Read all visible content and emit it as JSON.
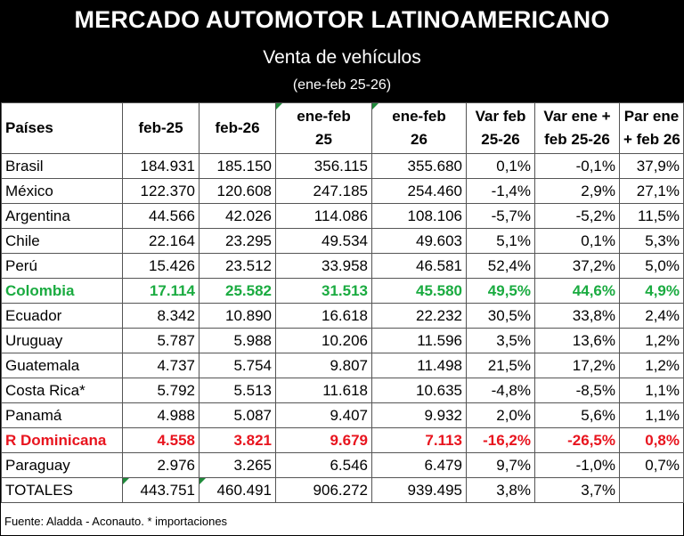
{
  "header": {
    "title": "MERCADO AUTOMOTOR LATINOAMERICANO",
    "subtitle": "Venta de vehículos",
    "period": "(ene-feb 25-26)"
  },
  "columns": [
    {
      "line1": "Países",
      "line2": ""
    },
    {
      "line1": "feb-25",
      "line2": ""
    },
    {
      "line1": "feb-26",
      "line2": ""
    },
    {
      "line1": "ene-feb",
      "line2": "25"
    },
    {
      "line1": "ene-feb",
      "line2": "26"
    },
    {
      "line1": "Var feb",
      "line2": "25-26"
    },
    {
      "line1": "Var ene +",
      "line2": "feb 25-26"
    },
    {
      "line1": "Par ene",
      "line2": "+ feb 26"
    }
  ],
  "rows": [
    {
      "style": "",
      "cells": [
        "Brasil",
        "184.931",
        "185.150",
        "356.115",
        "355.680",
        "0,1%",
        "-0,1%",
        "37,9%"
      ]
    },
    {
      "style": "",
      "cells": [
        "México",
        "122.370",
        "120.608",
        "247.185",
        "254.460",
        "-1,4%",
        "2,9%",
        "27,1%"
      ]
    },
    {
      "style": "",
      "cells": [
        "Argentina",
        "44.566",
        "42.026",
        "114.086",
        "108.106",
        "-5,7%",
        "-5,2%",
        "11,5%"
      ]
    },
    {
      "style": "",
      "cells": [
        "Chile",
        "22.164",
        "23.295",
        "49.534",
        "49.603",
        "5,1%",
        "0,1%",
        "5,3%"
      ]
    },
    {
      "style": "",
      "cells": [
        "Perú",
        "15.426",
        "23.512",
        "33.958",
        "46.581",
        "52,4%",
        "37,2%",
        "5,0%"
      ]
    },
    {
      "style": "green",
      "cells": [
        "Colombia",
        "17.114",
        "25.582",
        "31.513",
        "45.580",
        "49,5%",
        "44,6%",
        "4,9%"
      ]
    },
    {
      "style": "",
      "cells": [
        "Ecuador",
        "8.342",
        "10.890",
        "16.618",
        "22.232",
        "30,5%",
        "33,8%",
        "2,4%"
      ]
    },
    {
      "style": "",
      "cells": [
        "Uruguay",
        "5.787",
        "5.988",
        "10.206",
        "11.596",
        "3,5%",
        "13,6%",
        "1,2%"
      ]
    },
    {
      "style": "",
      "cells": [
        "Guatemala",
        "4.737",
        "5.754",
        "9.807",
        "11.498",
        "21,5%",
        "17,2%",
        "1,2%"
      ]
    },
    {
      "style": "",
      "cells": [
        "Costa Rica*",
        "5.792",
        "5.513",
        "11.618",
        "10.635",
        "-4,8%",
        "-8,5%",
        "1,1%"
      ]
    },
    {
      "style": "",
      "cells": [
        "Panamá",
        "4.988",
        "5.087",
        "9.407",
        "9.932",
        "2,0%",
        "5,6%",
        "1,1%"
      ]
    },
    {
      "style": "red",
      "cells": [
        "R Dominicana",
        "4.558",
        "3.821",
        "9.679",
        "7.113",
        "-16,2%",
        "-26,5%",
        "0,8%"
      ]
    },
    {
      "style": "",
      "cells": [
        "Paraguay",
        "2.976",
        "3.265",
        "6.546",
        "6.479",
        "9,7%",
        "-1,0%",
        "0,7%"
      ]
    },
    {
      "style": "total",
      "cells": [
        "TOTALES",
        "443.751",
        "460.491",
        "906.272",
        "939.495",
        "3,8%",
        "3,7%",
        ""
      ]
    }
  ],
  "footer": "Fuente: Aladda - Aconauto. * importaciones",
  "colors": {
    "highlight_green": "#1aab40",
    "highlight_red": "#e8141e",
    "header_bg": "#000000"
  }
}
